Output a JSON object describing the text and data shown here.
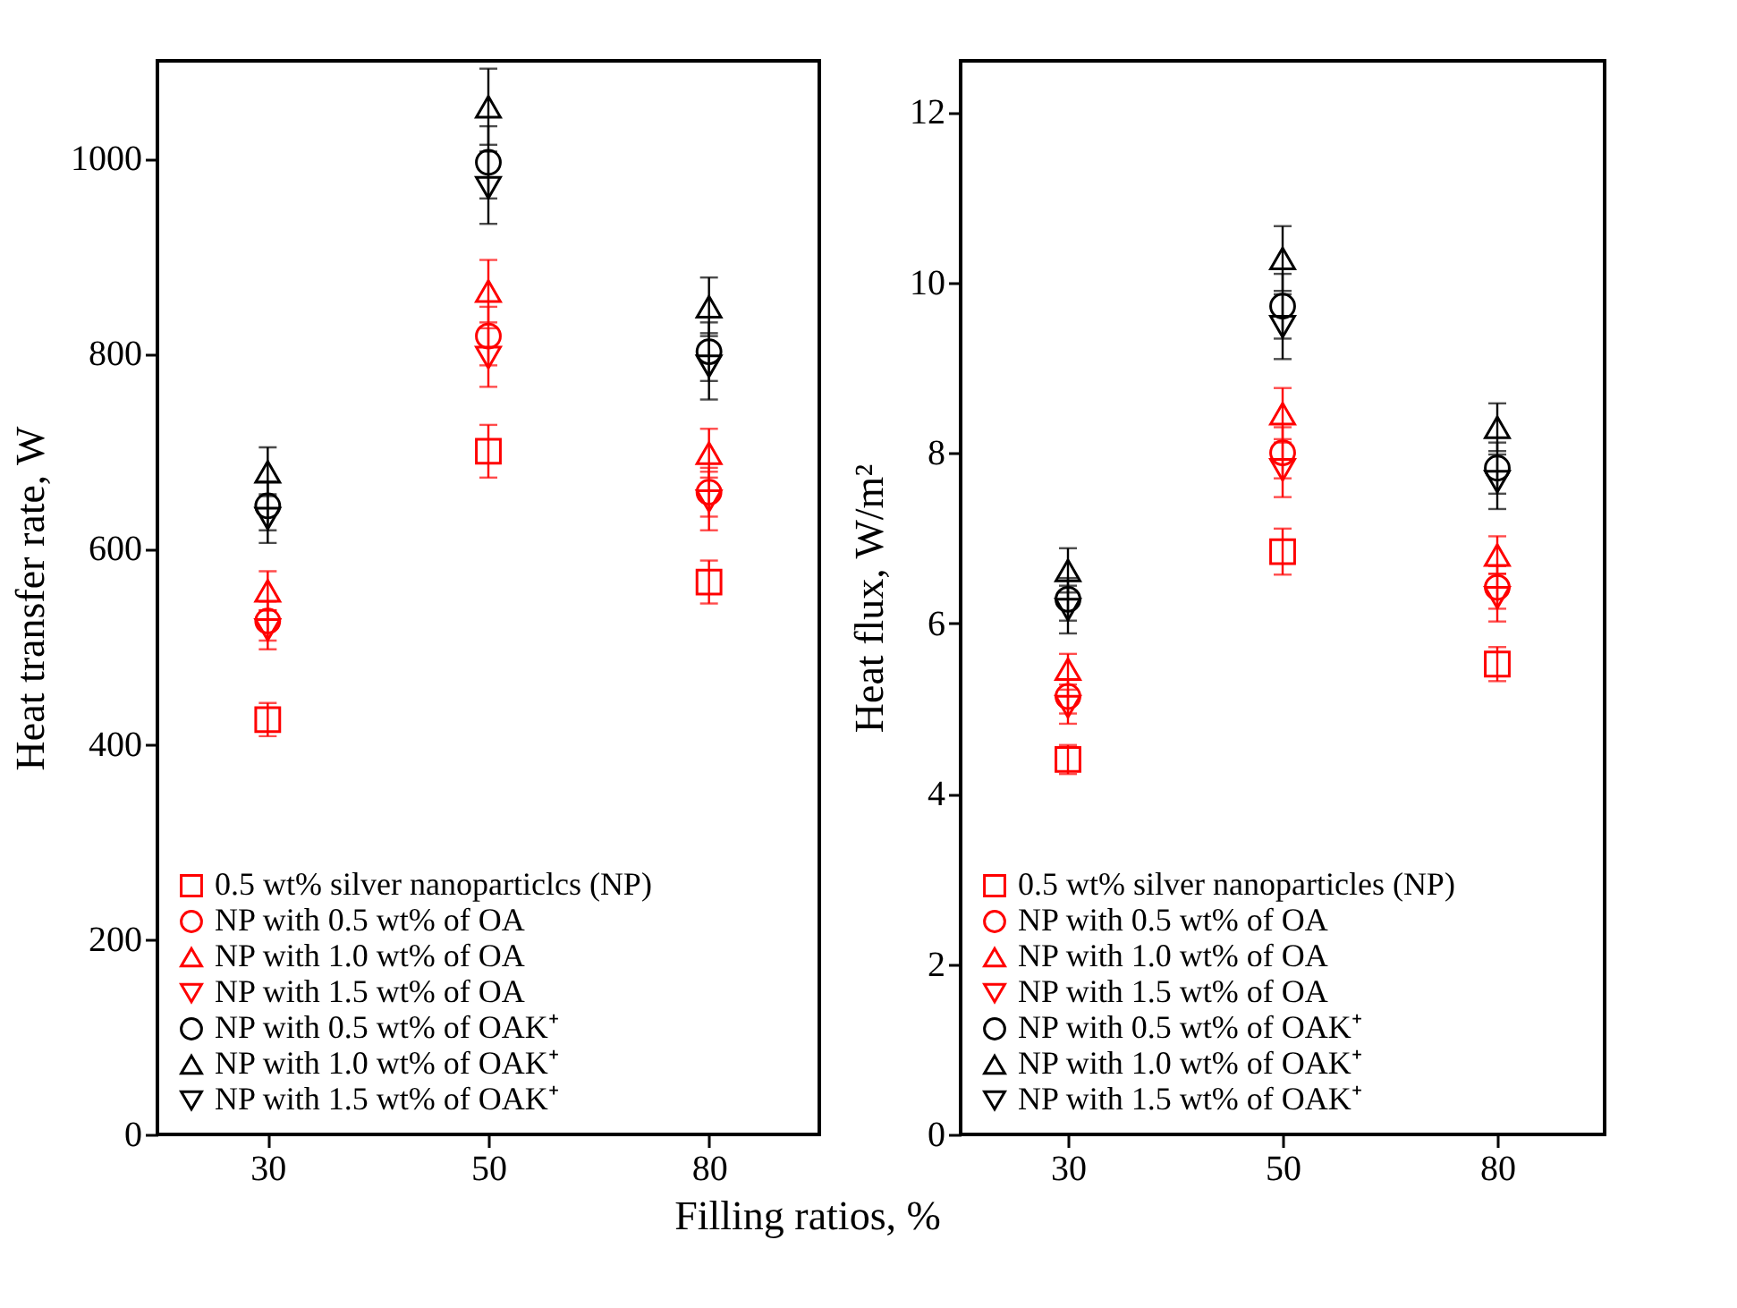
{
  "chart_data": [
    {
      "type": "scatter",
      "xlabel": "Filling ratios, %",
      "ylabel": "Heat transfer rate, W",
      "categories": [
        "30",
        "50",
        "80"
      ],
      "ylim": [
        0,
        1100
      ],
      "yticks": [
        0,
        200,
        400,
        600,
        800,
        1000
      ],
      "grid": false,
      "legend": "bottom left",
      "series": [
        {
          "name": "0.5 wt% silver nanoparticlcs (NP)",
          "color": "#ff0000",
          "marker": "square",
          "values": [
            425,
            700,
            566
          ],
          "errors": [
            17,
            27,
            22
          ]
        },
        {
          "name": "NP with 0.5 wt% of OA",
          "color": "#ff0000",
          "marker": "circle",
          "values": [
            526,
            818,
            658
          ],
          "errors": [
            20,
            30,
            25
          ]
        },
        {
          "name": "NP with 1.0 wt% of OA",
          "color": "#ff0000",
          "marker": "triangle",
          "values": [
            557,
            864,
            698
          ],
          "errors": [
            20,
            32,
            25
          ]
        },
        {
          "name": "NP with 1.5 wt% of OA",
          "color": "#ff0000",
          "marker": "triangle-down",
          "values": [
            517,
            796,
            649
          ],
          "errors": [
            20,
            30,
            30
          ]
        },
        {
          "name": "NP with 0.5 wt% of OAK⁺",
          "color": "#000000",
          "marker": "circle",
          "values": [
            644,
            996,
            802
          ],
          "errors": [
            25,
            37,
            30
          ]
        },
        {
          "name": "NP with 1.0 wt% of OAK⁺",
          "color": "#000000",
          "marker": "triangle",
          "values": [
            679,
            1053,
            848
          ],
          "errors": [
            25,
            39,
            30
          ]
        },
        {
          "name": "NP with 1.5 wt% of OAK⁺",
          "color": "#000000",
          "marker": "triangle-down",
          "values": [
            631,
            970,
            787
          ],
          "errors": [
            25,
            37,
            34
          ]
        }
      ]
    },
    {
      "type": "scatter",
      "ylabel": "Heat flux, W/m²",
      "categories": [
        "30",
        "50",
        "80"
      ],
      "ylim": [
        0,
        12.6
      ],
      "yticks": [
        0,
        2,
        4,
        6,
        8,
        10,
        12
      ],
      "grid": false,
      "legend": "bottom left",
      "series": [
        {
          "name": "0.5 wt% silver nanoparticles (NP)",
          "color": "#ff0000",
          "marker": "square",
          "values": [
            4.4,
            6.84,
            5.52
          ],
          "errors": [
            0.17,
            0.27,
            0.2
          ]
        },
        {
          "name": "NP with 0.5 wt% of OA",
          "color": "#ff0000",
          "marker": "circle",
          "values": [
            5.14,
            8.0,
            6.42
          ],
          "errors": [
            0.2,
            0.3,
            0.25
          ]
        },
        {
          "name": "NP with 1.0 wt% of OA",
          "color": "#ff0000",
          "marker": "triangle",
          "values": [
            5.46,
            8.46,
            6.8
          ],
          "errors": [
            0.18,
            0.3,
            0.22
          ]
        },
        {
          "name": "NP with 1.5 wt% of OA",
          "color": "#ff0000",
          "marker": "triangle-down",
          "values": [
            5.02,
            7.8,
            6.3
          ],
          "errors": [
            0.2,
            0.32,
            0.28
          ]
        },
        {
          "name": "NP with 0.5 wt% of OAK⁺",
          "color": "#000000",
          "marker": "circle",
          "values": [
            6.28,
            9.72,
            7.82
          ],
          "errors": [
            0.25,
            0.38,
            0.3
          ]
        },
        {
          "name": "NP with 1.0 wt% of OAK⁺",
          "color": "#000000",
          "marker": "triangle",
          "values": [
            6.62,
            10.28,
            8.3
          ],
          "errors": [
            0.26,
            0.38,
            0.28
          ]
        },
        {
          "name": "NP with 1.5 wt% of OAK⁺",
          "color": "#000000",
          "marker": "triangle-down",
          "values": [
            6.16,
            9.48,
            7.66
          ],
          "errors": [
            0.28,
            0.38,
            0.32
          ]
        }
      ]
    }
  ]
}
